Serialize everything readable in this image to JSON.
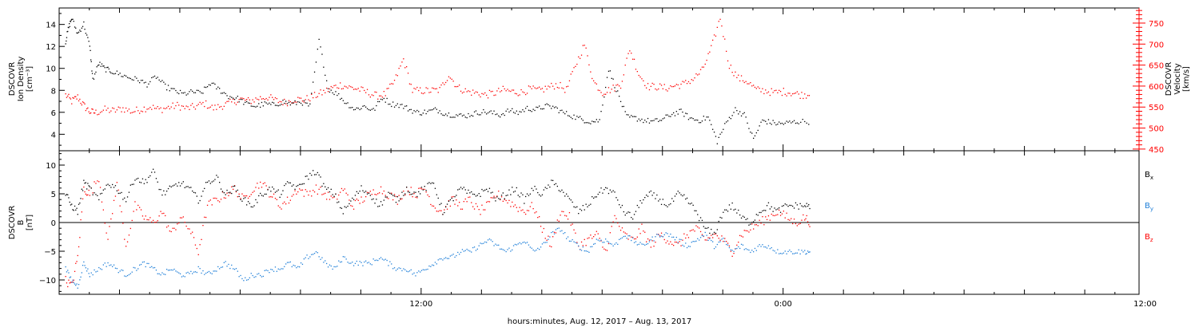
{
  "chart_data": [
    {
      "type": "scatter",
      "title": "",
      "left_axis": {
        "label_lines": [
          "DSCOVR",
          "Ion Density",
          "[cm⁻³]"
        ],
        "ticks": [
          4,
          6,
          8,
          10,
          12,
          14
        ],
        "tick_labels": [
          "4",
          "6",
          "8",
          "10",
          "12",
          "14"
        ],
        "ylim": [
          2.5,
          15.5
        ],
        "color": "#000000"
      },
      "right_axis": {
        "label_lines": [
          "DSCOVR",
          "Velocity",
          "[km/s]"
        ],
        "ticks": [
          450,
          500,
          550,
          600,
          650,
          700,
          750
        ],
        "tick_labels": [
          "450",
          "500",
          "550",
          "600",
          "650",
          "700",
          "750"
        ],
        "ylim": [
          446,
          786
        ],
        "color": "#ff0000"
      },
      "series": [
        {
          "axis": "left",
          "color": "#000000",
          "hours": [
            0.2,
            0.3,
            0.4,
            0.6,
            0.8,
            1.0,
            1.1,
            1.3,
            1.5,
            1.7,
            2.0,
            2.3,
            2.6,
            2.9,
            3.2,
            3.5,
            3.8,
            4.1,
            4.4,
            4.7,
            5.0,
            5.3,
            5.6,
            5.9,
            6.2,
            6.5,
            6.8,
            7.1,
            7.4,
            7.7,
            8.0,
            8.3,
            8.6,
            8.9,
            9.2,
            9.5,
            9.8,
            10.1,
            10.4,
            10.7,
            11.0,
            11.3,
            11.6,
            11.9,
            12.2,
            12.5,
            12.8,
            13.1,
            13.4,
            13.7,
            14.0,
            14.3,
            14.6,
            14.9,
            15.2,
            15.5,
            15.8,
            16.1,
            16.4,
            16.7,
            17.0,
            17.3,
            17.6,
            17.9,
            18.2,
            18.5,
            18.8,
            19.1,
            19.4,
            19.7,
            20.0,
            20.3,
            20.6,
            20.9,
            21.2,
            21.5,
            21.8,
            22.1,
            22.4,
            22.7,
            23.0,
            23.3,
            23.6,
            23.9,
            24.2,
            24.5,
            24.9
          ],
          "values": [
            12.5,
            13.8,
            14.6,
            13.2,
            14.1,
            12.0,
            9.0,
            10.5,
            10.0,
            9.8,
            9.5,
            9.2,
            9.0,
            8.6,
            9.3,
            8.4,
            8.0,
            7.7,
            7.9,
            7.8,
            8.7,
            8.1,
            7.5,
            7.3,
            6.8,
            6.6,
            6.8,
            6.7,
            7.0,
            6.8,
            7.0,
            6.6,
            12.6,
            8.2,
            7.7,
            6.9,
            6.3,
            6.6,
            6.2,
            7.4,
            6.8,
            6.7,
            6.3,
            6.0,
            6.1,
            6.3,
            5.9,
            5.8,
            5.7,
            5.9,
            6.1,
            6.0,
            5.8,
            6.2,
            6.0,
            6.4,
            6.3,
            6.6,
            6.5,
            6.0,
            5.7,
            5.4,
            5.2,
            5.3,
            10.0,
            7.8,
            5.6,
            5.5,
            5.3,
            5.2,
            5.4,
            5.9,
            6.1,
            5.5,
            5.3,
            5.6,
            3.4,
            5.1,
            6.3,
            5.8,
            3.6,
            5.3,
            5.1,
            5.0,
            5.1,
            5.2,
            5.2
          ]
        },
        {
          "axis": "right",
          "color": "#ff0000",
          "hours": [
            0.2,
            0.4,
            0.6,
            0.8,
            1.0,
            1.2,
            1.5,
            1.8,
            2.1,
            2.4,
            2.7,
            3.0,
            3.3,
            3.6,
            3.9,
            4.2,
            4.5,
            4.8,
            5.1,
            5.4,
            5.7,
            6.0,
            6.3,
            6.6,
            6.9,
            7.2,
            7.5,
            7.8,
            8.1,
            8.4,
            8.7,
            9.0,
            9.3,
            9.6,
            9.9,
            10.2,
            10.5,
            10.8,
            11.1,
            11.4,
            11.7,
            12.0,
            12.3,
            12.6,
            12.9,
            13.2,
            13.5,
            13.8,
            14.1,
            14.4,
            14.7,
            15.0,
            15.3,
            15.6,
            15.9,
            16.2,
            16.5,
            16.8,
            17.1,
            17.4,
            17.7,
            18.0,
            18.3,
            18.6,
            18.9,
            19.2,
            19.5,
            19.8,
            20.1,
            20.4,
            20.7,
            21.0,
            21.3,
            21.6,
            21.9,
            22.2,
            22.5,
            22.8,
            23.1,
            23.4,
            23.7,
            24.0,
            24.3,
            24.6,
            24.9
          ],
          "values": [
            580,
            565,
            575,
            555,
            540,
            538,
            545,
            542,
            548,
            540,
            546,
            552,
            545,
            550,
            555,
            548,
            552,
            560,
            548,
            555,
            562,
            570,
            565,
            572,
            575,
            566,
            562,
            570,
            568,
            576,
            585,
            596,
            604,
            598,
            594,
            586,
            578,
            582,
            612,
            665,
            590,
            590,
            590,
            592,
            628,
            598,
            588,
            585,
            580,
            584,
            592,
            588,
            586,
            594,
            590,
            598,
            605,
            592,
            650,
            700,
            612,
            586,
            594,
            605,
            690,
            630,
            600,
            600,
            596,
            602,
            606,
            618,
            638,
            690,
            764,
            650,
            620,
            612,
            592,
            590,
            585,
            588,
            585,
            580,
            582
          ]
        }
      ]
    },
    {
      "type": "scatter",
      "title": "",
      "left_axis": {
        "label_lines": [
          "DSCOVR",
          "B",
          "[nT]"
        ],
        "ticks": [
          -10,
          -5,
          0,
          5,
          10
        ],
        "tick_labels": [
          "−10",
          "−5",
          "0",
          "5",
          "10"
        ],
        "ylim": [
          -12.5,
          12.5
        ],
        "zero_line": true
      },
      "legend": [
        "Bx",
        "By",
        "Bz"
      ],
      "series": [
        {
          "name": "Bx",
          "color": "#000000",
          "hours": [
            0.2,
            0.4,
            0.6,
            0.8,
            1.0,
            1.3,
            1.6,
            1.9,
            2.2,
            2.5,
            2.8,
            3.1,
            3.4,
            3.7,
            4.0,
            4.3,
            4.6,
            4.9,
            5.2,
            5.5,
            5.8,
            6.1,
            6.4,
            6.7,
            7.0,
            7.3,
            7.6,
            7.9,
            8.2,
            8.5,
            8.8,
            9.1,
            9.4,
            9.7,
            10.0,
            10.3,
            10.6,
            10.9,
            11.2,
            11.5,
            11.8,
            12.1,
            12.4,
            12.7,
            13.0,
            13.3,
            13.6,
            13.9,
            14.2,
            14.5,
            14.8,
            15.1,
            15.4,
            15.7,
            16.0,
            16.3,
            16.6,
            16.9,
            17.2,
            17.5,
            17.8,
            18.1,
            18.4,
            18.7,
            19.0,
            19.3,
            19.6,
            19.9,
            20.2,
            20.5,
            20.8,
            21.1,
            21.4,
            21.7,
            22.0,
            22.3,
            22.6,
            22.9,
            23.2,
            23.5,
            23.8,
            24.1,
            24.4,
            24.7,
            24.9
          ],
          "values": [
            5,
            3,
            2,
            7,
            6,
            4,
            7,
            6,
            4,
            8,
            7,
            9,
            5,
            6,
            7,
            6,
            4,
            7,
            8,
            5,
            6,
            4,
            3,
            5,
            6,
            5,
            7,
            6,
            8,
            9,
            6,
            5,
            2,
            4,
            6,
            5,
            3,
            5,
            4,
            6,
            5,
            6,
            7,
            2,
            4,
            6,
            5,
            5,
            6,
            4,
            5,
            6,
            4,
            6,
            5,
            7,
            6,
            4,
            2,
            3,
            5,
            6,
            5,
            2,
            1,
            4,
            5,
            4,
            3,
            5,
            4,
            2,
            -1,
            -2,
            2,
            3,
            1,
            0,
            2,
            3,
            2,
            3,
            3,
            3,
            3
          ]
        },
        {
          "name": "By",
          "color": "#1f7fd8",
          "hours": [
            0.2,
            0.4,
            0.6,
            0.8,
            1.0,
            1.3,
            1.6,
            1.9,
            2.2,
            2.5,
            2.8,
            3.1,
            3.4,
            3.7,
            4.0,
            4.3,
            4.6,
            4.9,
            5.2,
            5.5,
            5.8,
            6.1,
            6.4,
            6.7,
            7.0,
            7.3,
            7.6,
            7.9,
            8.2,
            8.5,
            8.8,
            9.1,
            9.4,
            9.7,
            10.0,
            10.3,
            10.6,
            10.9,
            11.2,
            11.5,
            11.8,
            12.1,
            12.4,
            12.7,
            13.0,
            13.3,
            13.6,
            13.9,
            14.2,
            14.5,
            14.8,
            15.1,
            15.4,
            15.7,
            16.0,
            16.3,
            16.6,
            16.9,
            17.2,
            17.5,
            17.8,
            18.1,
            18.4,
            18.7,
            19.0,
            19.3,
            19.6,
            19.9,
            20.2,
            20.5,
            20.8,
            21.1,
            21.4,
            21.7,
            22.0,
            22.3,
            22.6,
            22.9,
            23.2,
            23.5,
            23.8,
            24.1,
            24.4,
            24.7,
            24.9
          ],
          "values": [
            -8,
            -10,
            -11,
            -7,
            -9,
            -8,
            -7,
            -8,
            -9,
            -8,
            -7,
            -8,
            -9,
            -8,
            -9,
            -9,
            -8,
            -9,
            -8,
            -7,
            -8,
            -10,
            -9,
            -9,
            -8,
            -8,
            -7,
            -8,
            -6,
            -5,
            -7,
            -8,
            -6,
            -7,
            -7,
            -7,
            -6,
            -7,
            -8,
            -8,
            -9,
            -8,
            -7,
            -6,
            -6,
            -5,
            -5,
            -4,
            -3,
            -4,
            -5,
            -4,
            -3,
            -5,
            -4,
            -2,
            -1,
            -3,
            -4,
            -5,
            -3,
            -3,
            -4,
            -2,
            -3,
            -4,
            -3,
            -2,
            -2,
            -3,
            -4,
            -3,
            -2,
            -4,
            -3,
            -5,
            -4,
            -5,
            -4,
            -4,
            -5,
            -5,
            -5,
            -5,
            -5
          ]
        },
        {
          "name": "Bz",
          "color": "#ff0000",
          "hours": [
            0.2,
            0.4,
            0.6,
            0.8,
            1.0,
            1.3,
            1.6,
            1.9,
            2.2,
            2.5,
            2.8,
            3.1,
            3.4,
            3.7,
            4.0,
            4.3,
            4.6,
            4.9,
            5.2,
            5.5,
            5.8,
            6.1,
            6.4,
            6.7,
            7.0,
            7.3,
            7.6,
            7.9,
            8.2,
            8.5,
            8.8,
            9.1,
            9.4,
            9.7,
            10.0,
            10.3,
            10.6,
            10.9,
            11.2,
            11.5,
            11.8,
            12.1,
            12.4,
            12.7,
            13.0,
            13.3,
            13.6,
            13.9,
            14.2,
            14.5,
            14.8,
            15.1,
            15.4,
            15.7,
            16.0,
            16.3,
            16.6,
            16.9,
            17.2,
            17.5,
            17.8,
            18.1,
            18.4,
            18.7,
            19.0,
            19.3,
            19.6,
            19.9,
            20.2,
            20.5,
            20.8,
            21.1,
            21.4,
            21.7,
            22.0,
            22.3,
            22.6,
            22.9,
            23.2,
            23.5,
            23.8,
            24.1,
            24.4,
            24.7,
            24.9
          ],
          "values": [
            -10,
            -11,
            -6,
            6,
            5,
            8,
            -3,
            7,
            -4,
            3,
            1,
            0,
            2,
            -2,
            1,
            -1,
            -5,
            3,
            4,
            5,
            6,
            4,
            6,
            7,
            5,
            3,
            4,
            6,
            5,
            6,
            5,
            4,
            6,
            3,
            4,
            5,
            6,
            5,
            4,
            6,
            5,
            6,
            3,
            2,
            4,
            3,
            4,
            2,
            3,
            5,
            4,
            3,
            2,
            3,
            -1,
            -4,
            2,
            1,
            -4,
            -3,
            -2,
            -5,
            1,
            -2,
            -3,
            -1,
            -4,
            -2,
            -3,
            -4,
            -2,
            -1,
            -3,
            -2,
            -3,
            -5,
            -2,
            -1,
            0,
            1,
            2,
            1,
            0,
            1,
            0
          ]
        }
      ]
    }
  ],
  "x_axis": {
    "start": "2017-08-12 00:00",
    "range_hours": [
      0,
      35.8
    ],
    "major_ticks": [
      12,
      24,
      36
    ],
    "major_labels": [
      "12:00",
      "0:00",
      "12:00"
    ],
    "minor_ticks": [
      1,
      3,
      5,
      7,
      9,
      11,
      13,
      15,
      17,
      19,
      21,
      23,
      25,
      27,
      29,
      31,
      33,
      35
    ],
    "label": "hours:minutes, Aug. 12, 2017 – Aug. 13, 2017"
  }
}
